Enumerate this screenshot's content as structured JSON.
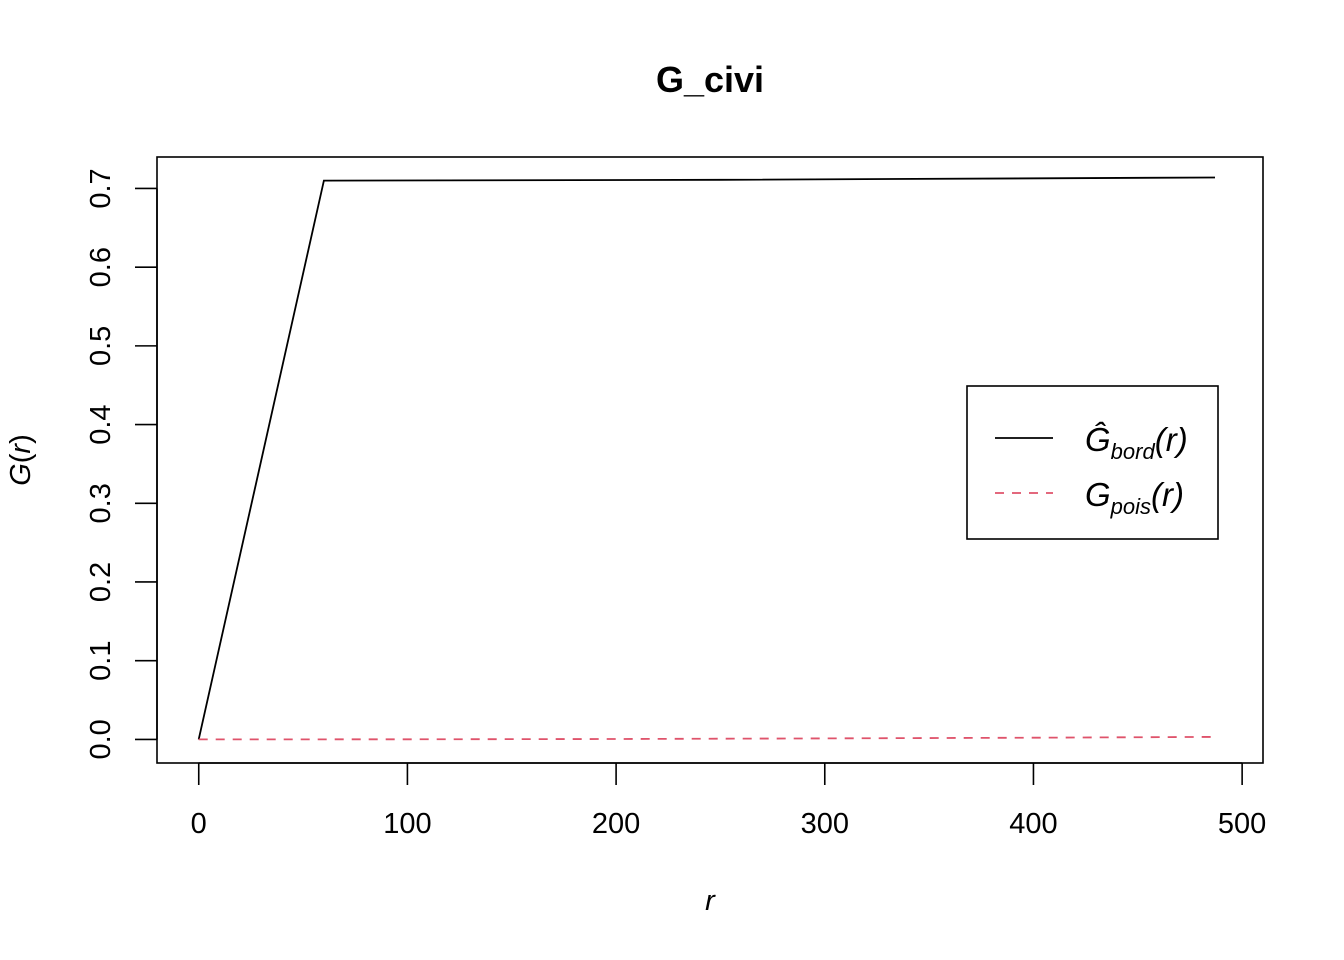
{
  "chart_data": {
    "type": "line",
    "title": "G_civi",
    "xlabel": "r",
    "ylabel_main": "G",
    "ylabel_arg": "r",
    "xlim": [
      -20,
      510
    ],
    "ylim": [
      -0.03,
      0.74
    ],
    "x_ticks": [
      0,
      100,
      200,
      300,
      400,
      500
    ],
    "x_tick_labels": [
      "0",
      "100",
      "200",
      "300",
      "400",
      "500"
    ],
    "y_ticks": [
      0.0,
      0.1,
      0.2,
      0.3,
      0.4,
      0.5,
      0.6,
      0.7
    ],
    "y_tick_labels": [
      "0.0",
      "0.1",
      "0.2",
      "0.3",
      "0.4",
      "0.5",
      "0.6",
      "0.7"
    ],
    "grid": false,
    "legend_position": "right",
    "series": [
      {
        "name_main": "Ĝ",
        "name_sub": "bord",
        "name_arg": "(r)",
        "color": "#000000",
        "dash": "solid",
        "points": [
          [
            0,
            0.0
          ],
          [
            60,
            0.71
          ],
          [
            250,
            0.711
          ],
          [
            487,
            0.714
          ]
        ]
      },
      {
        "name_main": "G",
        "name_sub": "pois",
        "name_arg": "(r)",
        "color": "#DF536B",
        "dash": "dashed",
        "points": [
          [
            0,
            0.0
          ],
          [
            100,
            0.0001
          ],
          [
            200,
            0.0005
          ],
          [
            300,
            0.0012
          ],
          [
            400,
            0.0021
          ],
          [
            487,
            0.0031
          ]
        ]
      }
    ]
  }
}
